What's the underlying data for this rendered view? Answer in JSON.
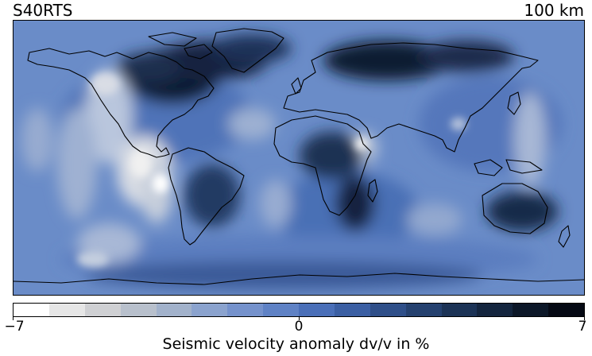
{
  "model_name": "S40RTS",
  "depth_label": "100 km",
  "colorbar": {
    "label": "Seismic velocity anomaly dv/v in %",
    "ticks": [
      {
        "label": "−7",
        "value": -7
      },
      {
        "label": "0",
        "value": 0
      },
      {
        "label": "7",
        "value": 7
      }
    ],
    "range": [
      -7,
      7
    ],
    "levels": 16,
    "colors": [
      "#ffffff",
      "#e6e6e6",
      "#cfd0d3",
      "#b8c0cc",
      "#a2b2cb",
      "#8ba3ce",
      "#7592cc",
      "#5f82c5",
      "#4a6fb8",
      "#3b5fa3",
      "#2f4f89",
      "#25416f",
      "#1c3356",
      "#14253e",
      "#0c1728",
      "#050914"
    ]
  },
  "map": {
    "projection": "equirectangular",
    "ocean_colors": {
      "base": "#6d8fc9",
      "slow": "#e6e6e6",
      "fast": "#142845"
    },
    "coastline_color": "#000000"
  }
}
